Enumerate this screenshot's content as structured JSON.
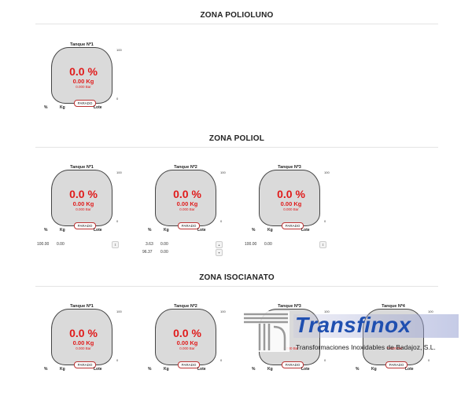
{
  "zones": [
    {
      "title": "ZONA POLIOLUNO",
      "tanks": [
        {
          "name": "Tanque Nº1",
          "scale_top": "100",
          "scale_bottom": "0",
          "percent": "0.0 %",
          "kg": "0.00 Kg",
          "bar": "0.000 Bar",
          "status": "PARADO",
          "cols": {
            "pct": "%",
            "kg": "Kg",
            "lote": "Lote"
          },
          "rows": []
        }
      ]
    },
    {
      "title": "ZONA POLIOL",
      "tanks": [
        {
          "name": "Tanque Nº1",
          "scale_top": "100",
          "scale_bottom": "0",
          "percent": "0.0 %",
          "kg": "0.00 Kg",
          "bar": "0.000 Bar",
          "status": "PARADO",
          "cols": {
            "pct": "%",
            "kg": "Kg",
            "lote": "Lote"
          },
          "rows": [
            {
              "pct": "100.00",
              "kg": "0.00"
            }
          ]
        },
        {
          "name": "Tanque Nº2",
          "scale_top": "100",
          "scale_bottom": "0",
          "percent": "0.0 %",
          "kg": "0.00 Kg",
          "bar": "0.000 Bar",
          "status": "PARADO",
          "cols": {
            "pct": "%",
            "kg": "Kg",
            "lote": "Lote"
          },
          "rows": [
            {
              "pct": "3.63",
              "kg": "0.00"
            },
            {
              "pct": "96.37",
              "kg": "0.00"
            }
          ]
        },
        {
          "name": "Tanque Nº3",
          "scale_top": "100",
          "scale_bottom": "0",
          "percent": "0.0 %",
          "kg": "0.00 Kg",
          "bar": "0.000 Bar",
          "status": "PARADO",
          "cols": {
            "pct": "%",
            "kg": "Kg",
            "lote": "Lote"
          },
          "rows": [
            {
              "pct": "100.00",
              "kg": "0.00"
            }
          ]
        }
      ]
    },
    {
      "title": "ZONA ISOCIANATO",
      "tanks": [
        {
          "name": "Tanque Nº1",
          "scale_top": "100",
          "scale_bottom": "0",
          "percent": "0.0 %",
          "kg": "0.00 Kg",
          "bar": "0.000 Bar",
          "status": "PARADO",
          "cols": {
            "pct": "%",
            "kg": "Kg",
            "lote": "Lote"
          },
          "rows": []
        },
        {
          "name": "Tanque Nº2",
          "scale_top": "100",
          "scale_bottom": "0",
          "percent": "0.0 %",
          "kg": "0.00 Kg",
          "bar": "0.000 Bar",
          "status": "PARADO",
          "cols": {
            "pct": "%",
            "kg": "Kg",
            "lote": "Lote"
          },
          "rows": []
        },
        {
          "name": "Tanque Nº3",
          "scale_top": "100",
          "scale_bottom": "0",
          "percent": "",
          "kg": "",
          "bar": "0.000 Bar",
          "status": "PARADO",
          "cols": {
            "pct": "%",
            "kg": "Kg",
            "lote": "Lote"
          },
          "rows": []
        },
        {
          "name": "Tanque Nº4",
          "scale_top": "100",
          "scale_bottom": "0",
          "percent": "",
          "kg": "",
          "bar": "0.000 Bar",
          "status": "PARADO",
          "cols": {
            "pct": "%",
            "kg": "Kg",
            "lote": "Lote"
          },
          "rows": []
        }
      ]
    }
  ],
  "logo": {
    "word": "Transfinox",
    "subtitle": "Transformaciones Inoxidables de Badajoz, S.L."
  },
  "colors": {
    "level_text": "#e01b1b",
    "vessel_fill": "#dadada",
    "logo_blue": "#1f4fb0"
  }
}
